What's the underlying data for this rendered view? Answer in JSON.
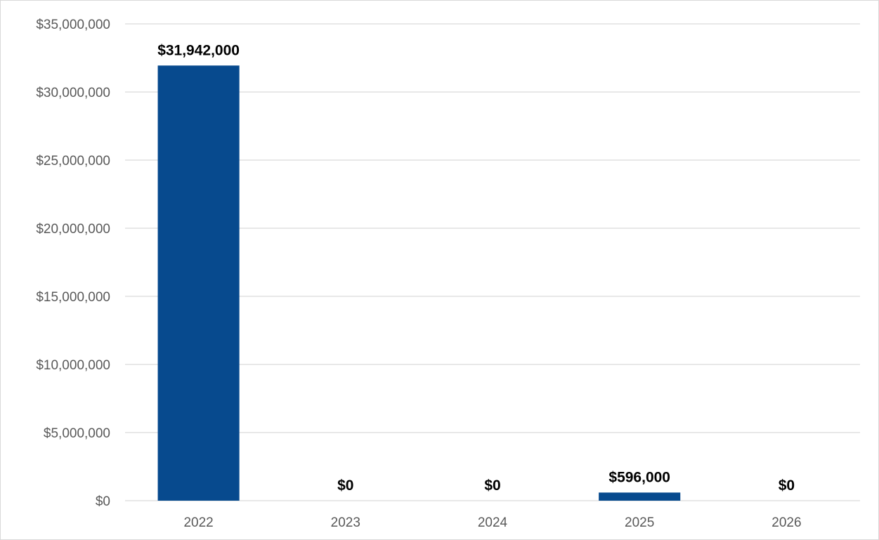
{
  "chart_data": {
    "type": "bar",
    "title": "",
    "xlabel": "",
    "ylabel": "",
    "categories": [
      "2022",
      "2023",
      "2024",
      "2025",
      "2026"
    ],
    "values": [
      31942000,
      0,
      0,
      596000,
      0
    ],
    "data_labels": [
      "$31,942,000",
      "$0",
      "$0",
      "$596,000",
      "$0"
    ],
    "ylim": [
      0,
      35000000
    ],
    "yticks": [
      0,
      5000000,
      10000000,
      15000000,
      20000000,
      25000000,
      30000000,
      35000000
    ],
    "ytick_labels": [
      "$0",
      "$5,000,000",
      "$10,000,000",
      "$15,000,000",
      "$20,000,000",
      "$25,000,000",
      "$30,000,000",
      "$35,000,000"
    ],
    "grid": true,
    "legend": "none",
    "colors": {
      "bar": "#074A8E",
      "grid": "#d9d9d9",
      "axis_text": "#595959",
      "label_text": "#000000"
    }
  }
}
